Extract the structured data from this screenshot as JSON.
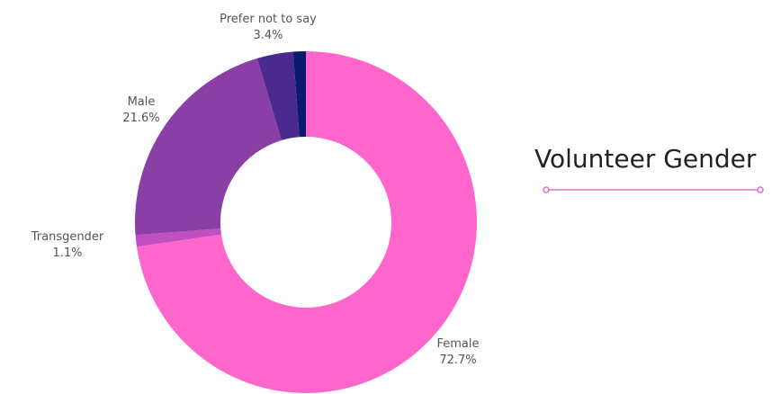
{
  "chart_data": {
    "type": "pie",
    "title": "Volunteer Gender",
    "slices": [
      {
        "name": "Female",
        "value": 72.7,
        "label": "72.7%",
        "color": "#ff66cc"
      },
      {
        "name": "Transgender",
        "value": 1.1,
        "label": "1.1%",
        "color": "#c04fc4"
      },
      {
        "name": "Male",
        "value": 21.6,
        "label": "21.6%",
        "color": "#8a3fa6"
      },
      {
        "name": "Prefer not to say",
        "value": 3.4,
        "label": "3.4%",
        "color": "#4a2a8e"
      },
      {
        "name": "",
        "value": 1.2,
        "label": "",
        "color": "#0b1a6e"
      }
    ]
  },
  "accent_color": "#e472c8"
}
